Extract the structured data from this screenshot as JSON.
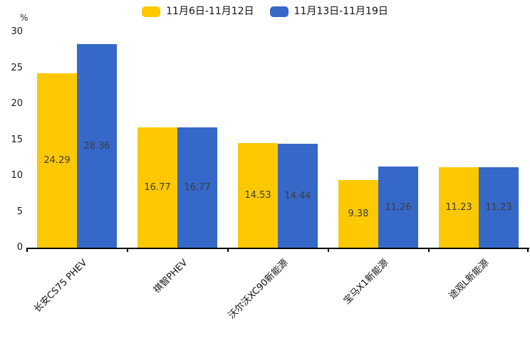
{
  "chart_data": {
    "type": "bar",
    "title": "",
    "xlabel": "",
    "ylabel": "%",
    "ylim": [
      0,
      30
    ],
    "yticks": [
      0,
      5,
      10,
      15,
      20,
      25,
      30
    ],
    "grid": false,
    "legend_position": "top-center",
    "categories": [
      "长安CS75 PHEV",
      "祺智PHEV",
      "沃尔沃XC90新能源",
      "宝马X1新能源",
      "途观L新能源"
    ],
    "series": [
      {
        "name": "11月6日-11月12日",
        "color": "#FCC800",
        "values": [
          24.29,
          16.77,
          14.53,
          9.38,
          11.23
        ]
      },
      {
        "name": "11月13日-11月19日",
        "color": "#3568C8",
        "values": [
          28.36,
          16.77,
          14.44,
          11.26,
          11.23
        ]
      }
    ],
    "colors": {
      "axis": "#000000",
      "tick_label": "#1a1a1a",
      "value_label": "#3d3d3d",
      "background": "#ffffff"
    }
  }
}
